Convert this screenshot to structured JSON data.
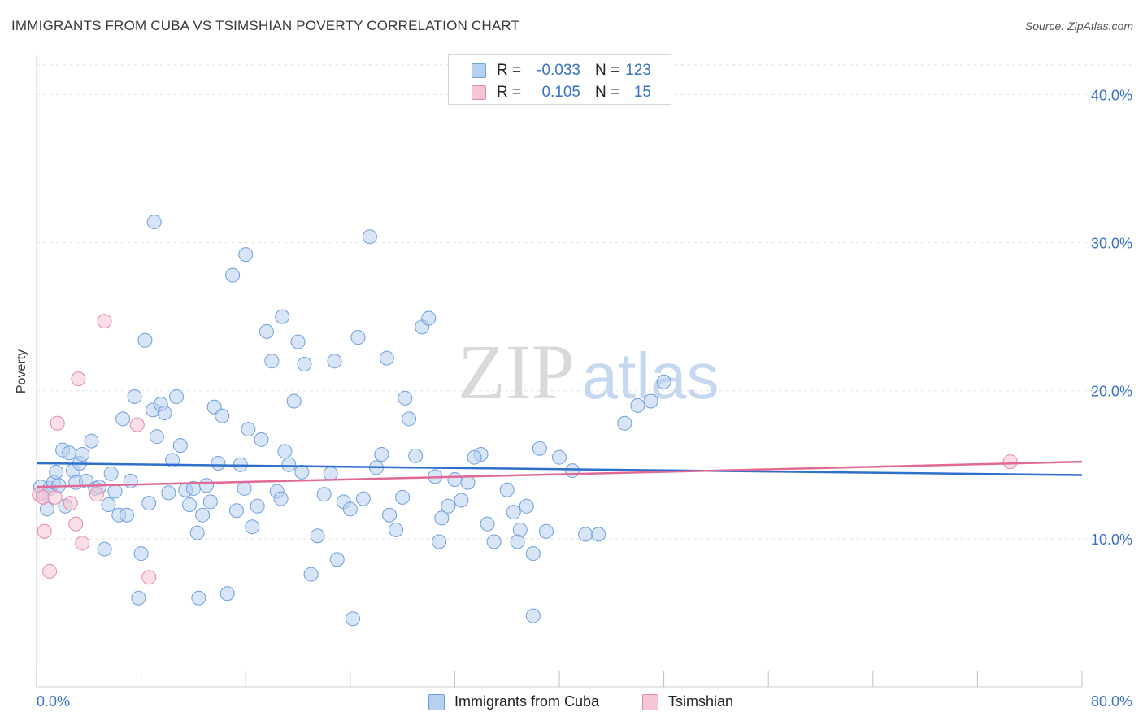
{
  "title": "IMMIGRANTS FROM CUBA VS TSIMSHIAN POVERTY CORRELATION CHART",
  "source": "Source: ZipAtlas.com",
  "watermark": {
    "zip": "ZIP",
    "atlas": "atlas"
  },
  "legend": {
    "rows": [
      {
        "r_label": "R =",
        "r_value": "-0.033",
        "n_label": "N =",
        "n_value": "123",
        "fill": "#b7d0f0",
        "stroke": "#6f9fdc"
      },
      {
        "r_label": "R =",
        "r_value": "0.105",
        "n_label": "N =",
        "n_value": "15",
        "fill": "#f7c5d4",
        "stroke": "#e68aa8"
      }
    ]
  },
  "chart_data": {
    "type": "scatter",
    "title": "IMMIGRANTS FROM CUBA VS TSIMSHIAN POVERTY CORRELATION CHART",
    "xlabel": "",
    "ylabel": "Poverty",
    "xlim": [
      0,
      80
    ],
    "ylim": [
      0,
      42
    ],
    "x_tick_labels": [
      "0.0%",
      "80.0%"
    ],
    "y_ticks": [
      10,
      20,
      30,
      40
    ],
    "y_tick_labels": [
      "10.0%",
      "20.0%",
      "30.0%",
      "40.0%"
    ],
    "grid": true,
    "legend_position": "top-center",
    "series": [
      {
        "name": "Immigrants from Cuba",
        "color": "#6f9fdc",
        "fill": "#b7d0f0",
        "trend": {
          "x": [
            0,
            80
          ],
          "y": [
            15.1,
            14.3
          ]
        },
        "points": [
          [
            0.3,
            13.5
          ],
          [
            0.5,
            13.0
          ],
          [
            0.8,
            12.0
          ],
          [
            1.0,
            13.4
          ],
          [
            1.3,
            13.8
          ],
          [
            1.5,
            14.5
          ],
          [
            1.7,
            13.6
          ],
          [
            2.0,
            16.0
          ],
          [
            2.2,
            12.2
          ],
          [
            2.5,
            15.8
          ],
          [
            2.8,
            14.6
          ],
          [
            3.0,
            13.8
          ],
          [
            3.3,
            15.1
          ],
          [
            3.5,
            15.7
          ],
          [
            3.8,
            13.9
          ],
          [
            4.2,
            16.6
          ],
          [
            4.5,
            13.4
          ],
          [
            4.8,
            13.5
          ],
          [
            5.2,
            9.3
          ],
          [
            5.5,
            12.3
          ],
          [
            5.7,
            14.4
          ],
          [
            6.0,
            13.2
          ],
          [
            6.3,
            11.6
          ],
          [
            6.6,
            18.1
          ],
          [
            6.9,
            11.6
          ],
          [
            7.2,
            13.9
          ],
          [
            7.5,
            19.6
          ],
          [
            8.0,
            9.0
          ],
          [
            8.3,
            23.4
          ],
          [
            8.6,
            12.4
          ],
          [
            8.9,
            18.7
          ],
          [
            9.2,
            16.9
          ],
          [
            9.5,
            19.1
          ],
          [
            9.8,
            18.5
          ],
          [
            10.1,
            13.1
          ],
          [
            10.4,
            15.3
          ],
          [
            10.7,
            19.6
          ],
          [
            11.0,
            16.3
          ],
          [
            11.4,
            13.3
          ],
          [
            11.7,
            12.3
          ],
          [
            12.0,
            13.4
          ],
          [
            12.3,
            10.4
          ],
          [
            12.7,
            11.6
          ],
          [
            13.0,
            13.6
          ],
          [
            13.3,
            12.5
          ],
          [
            13.6,
            18.9
          ],
          [
            13.9,
            15.1
          ],
          [
            14.2,
            18.3
          ],
          [
            14.6,
            6.3
          ],
          [
            15.0,
            27.8
          ],
          [
            15.3,
            11.9
          ],
          [
            15.6,
            15.0
          ],
          [
            15.9,
            13.4
          ],
          [
            16.2,
            17.4
          ],
          [
            16.5,
            10.8
          ],
          [
            16.9,
            12.2
          ],
          [
            17.2,
            16.7
          ],
          [
            18.0,
            22.0
          ],
          [
            18.4,
            13.2
          ],
          [
            18.7,
            12.7
          ],
          [
            19.0,
            15.9
          ],
          [
            19.3,
            15.0
          ],
          [
            19.7,
            19.3
          ],
          [
            20.0,
            23.3
          ],
          [
            20.3,
            14.5
          ],
          [
            21.0,
            7.6
          ],
          [
            21.5,
            10.2
          ],
          [
            22.0,
            13.0
          ],
          [
            22.5,
            14.4
          ],
          [
            23.0,
            8.6
          ],
          [
            23.5,
            12.5
          ],
          [
            24.0,
            12.0
          ],
          [
            24.2,
            4.6
          ],
          [
            25.0,
            12.7
          ],
          [
            25.5,
            30.4
          ],
          [
            26.0,
            14.8
          ],
          [
            26.4,
            15.7
          ],
          [
            27.0,
            11.6
          ],
          [
            27.5,
            10.6
          ],
          [
            28.0,
            12.8
          ],
          [
            28.5,
            18.1
          ],
          [
            29.0,
            15.6
          ],
          [
            29.5,
            24.3
          ],
          [
            30.0,
            24.9
          ],
          [
            30.5,
            14.2
          ],
          [
            31.0,
            11.4
          ],
          [
            31.5,
            12.2
          ],
          [
            32.0,
            14.0
          ],
          [
            32.5,
            12.6
          ],
          [
            33.0,
            13.8
          ],
          [
            34.0,
            15.7
          ],
          [
            34.5,
            11.0
          ],
          [
            35.0,
            9.8
          ],
          [
            36.0,
            13.3
          ],
          [
            36.5,
            11.8
          ],
          [
            37.0,
            10.6
          ],
          [
            37.5,
            12.2
          ],
          [
            38.0,
            9.0
          ],
          [
            38.5,
            16.1
          ],
          [
            39.0,
            10.5
          ],
          [
            40.0,
            15.5
          ],
          [
            41.0,
            14.6
          ],
          [
            42.0,
            10.3
          ],
          [
            43.0,
            10.3
          ],
          [
            45.0,
            17.8
          ],
          [
            46.0,
            19.0
          ],
          [
            47.0,
            19.3
          ],
          [
            48.0,
            20.6
          ],
          [
            9.0,
            31.4
          ],
          [
            12.4,
            6.0
          ],
          [
            16.0,
            29.2
          ],
          [
            17.6,
            24.0
          ],
          [
            18.8,
            25.0
          ],
          [
            7.8,
            6.0
          ],
          [
            20.5,
            21.8
          ],
          [
            22.8,
            22.0
          ],
          [
            24.6,
            23.6
          ],
          [
            26.8,
            22.2
          ],
          [
            28.2,
            19.5
          ],
          [
            30.8,
            9.8
          ],
          [
            33.5,
            15.5
          ],
          [
            36.8,
            9.8
          ],
          [
            38.0,
            4.8
          ]
        ]
      },
      {
        "name": "Tsimshian",
        "color": "#e68aa8",
        "fill": "#f7c5d4",
        "trend": {
          "x": [
            0,
            80
          ],
          "y": [
            13.5,
            15.2
          ]
        },
        "points": [
          [
            0.2,
            13.0
          ],
          [
            0.5,
            12.8
          ],
          [
            0.6,
            10.5
          ],
          [
            1.0,
            7.8
          ],
          [
            1.4,
            12.8
          ],
          [
            1.6,
            17.8
          ],
          [
            2.6,
            12.4
          ],
          [
            3.0,
            11.0
          ],
          [
            3.2,
            20.8
          ],
          [
            3.5,
            9.7
          ],
          [
            4.6,
            13.0
          ],
          [
            5.2,
            24.7
          ],
          [
            7.7,
            17.7
          ],
          [
            8.6,
            7.4
          ],
          [
            74.5,
            15.2
          ]
        ]
      }
    ]
  },
  "bottom_legend": [
    {
      "label": "Immigrants from Cuba",
      "fill": "#b7d0f0",
      "stroke": "#6f9fdc"
    },
    {
      "label": "Tsimshian",
      "fill": "#f7c5d4",
      "stroke": "#e68aa8"
    }
  ]
}
